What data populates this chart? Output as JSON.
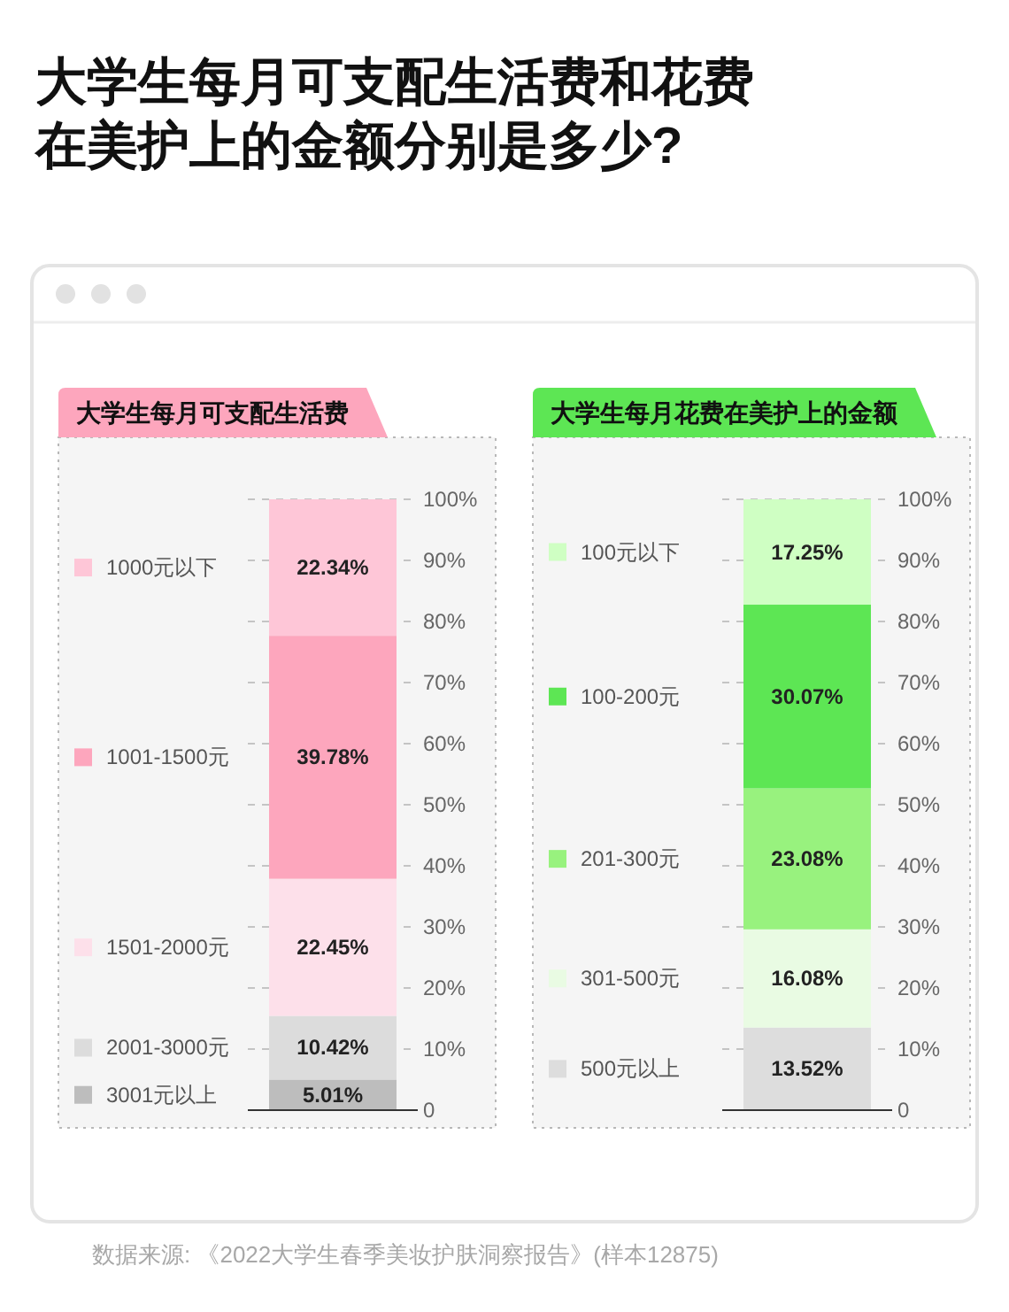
{
  "chart_data": [
    {
      "type": "bar",
      "title": "大学生每月可支配生活费和花费在美护上的金额分别是多少?",
      "subtitle": "大学生每月可支配生活费",
      "categories": [
        null
      ],
      "stacked": true,
      "series": [
        {
          "name": "3001元以上",
          "color": "#bdbdbd",
          "values": [
            5.01
          ],
          "value_labels": [
            "5.01%"
          ]
        },
        {
          "name": "2001-3000元",
          "color": "#dcdcdc",
          "values": [
            10.42
          ],
          "value_labels": [
            "10.42%"
          ]
        },
        {
          "name": "1501-2000元",
          "color": "#fde0ea",
          "values": [
            22.45
          ],
          "value_labels": [
            "22.45%"
          ]
        },
        {
          "name": "1001-1500元",
          "color": "#fda6bd",
          "values": [
            39.78
          ],
          "value_labels": [
            "39.78%"
          ]
        },
        {
          "name": "1000元以下",
          "color": "#fec6d7",
          "values": [
            22.34
          ],
          "value_labels": [
            "22.34%"
          ]
        }
      ],
      "ylim": [
        0,
        100
      ],
      "yticks": [
        0,
        {
          "value": 10,
          "label": "10%"
        },
        {
          "value": 20,
          "label": "20%"
        },
        {
          "value": 30,
          "label": "30%"
        },
        {
          "value": 40,
          "label": "40%"
        },
        {
          "value": 50,
          "label": "50%"
        },
        {
          "value": 60,
          "label": "60%"
        },
        {
          "value": 70,
          "label": "70%"
        },
        {
          "value": 80,
          "label": "80%"
        },
        {
          "value": 90,
          "label": "90%"
        },
        {
          "value": 100,
          "label": "100%"
        }
      ],
      "grid": "y",
      "legend": "left",
      "tick_labels": "y"
    },
    {
      "type": "bar",
      "title": "大学生每月花费在美护上的金额",
      "categories": [
        null
      ],
      "stacked": true,
      "series": [
        {
          "name": "500元以上",
          "color": "#dddddd",
          "values": [
            13.52
          ],
          "value_labels": [
            "13.52%"
          ]
        },
        {
          "name": "301-500元",
          "color": "#e9fbe3",
          "values": [
            16.08
          ],
          "value_labels": [
            "16.08%"
          ]
        },
        {
          "name": "201-300元",
          "color": "#98f27e",
          "values": [
            23.08
          ],
          "value_labels": [
            "23.08%"
          ]
        },
        {
          "name": "100-200元",
          "color": "#5de654",
          "values": [
            30.07
          ],
          "value_labels": [
            "30.07%"
          ]
        },
        {
          "name": "100元以下",
          "color": "#cfffc3",
          "values": [
            17.25
          ],
          "value_labels": [
            "17.25%"
          ]
        }
      ],
      "ylim": [
        0,
        100
      ],
      "yticks": [
        0,
        {
          "value": 10,
          "label": "10%"
        },
        {
          "value": 20,
          "label": "20%"
        },
        {
          "value": 30,
          "label": "30%"
        },
        {
          "value": 40,
          "label": "40%"
        },
        {
          "value": 50,
          "label": "50%"
        },
        {
          "value": 60,
          "label": "60%"
        },
        {
          "value": 70,
          "label": "70%"
        },
        {
          "value": 80,
          "label": "80%"
        },
        {
          "value": 90,
          "label": "90%"
        },
        {
          "value": 100,
          "label": "100%"
        }
      ],
      "grid": "y",
      "legend": "left",
      "tick_labels": "y",
      "annotations": [
        "数据来源: 《2022大学生春季美妆护肤洞察报告》(样本12875)"
      ]
    }
  ]
}
